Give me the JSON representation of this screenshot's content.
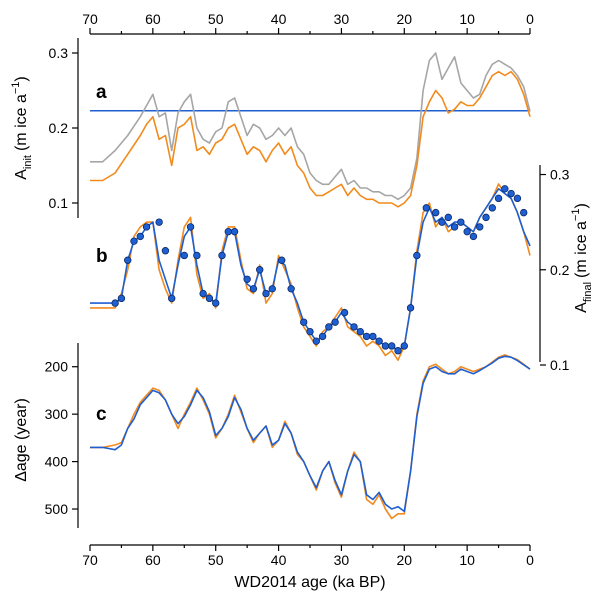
{
  "colors": {
    "gray": "#a6a6a6",
    "orange": "#f28a1c",
    "blue": "#1e5fd2",
    "marker": "#1f4fa8"
  },
  "chart_data": [
    {
      "id": "a",
      "type": "line",
      "panel_label": "a",
      "ylabel": "A",
      "ylabel_sub": "init",
      "ylabel_unit_pre": "(m ice a",
      "ylabel_unit_sup": "−1",
      "ylabel_unit_post": ")",
      "ylim": [
        0.08,
        0.32
      ],
      "yticks": [
        "0.1",
        "0.2",
        "0.3"
      ],
      "ytick_values": [
        0.1,
        0.2,
        0.3
      ],
      "hline": 0.223,
      "series": [
        {
          "color": "gray",
          "x": [
            70,
            68,
            66,
            64,
            62,
            61,
            60,
            59,
            58,
            57,
            56,
            55,
            54,
            53,
            52,
            51,
            50,
            49,
            48,
            47,
            46,
            45,
            44,
            43,
            42,
            41,
            40,
            39,
            38,
            37,
            36,
            35,
            34,
            33,
            32,
            31,
            30,
            29,
            28,
            27,
            26,
            25,
            24,
            23,
            22,
            21,
            20,
            19,
            18,
            17,
            16,
            15,
            14,
            13,
            12,
            11,
            10,
            9,
            8,
            7,
            6,
            5,
            4,
            3,
            2,
            1,
            0
          ],
          "y": [
            0.155,
            0.155,
            0.17,
            0.19,
            0.215,
            0.23,
            0.245,
            0.215,
            0.22,
            0.17,
            0.22,
            0.235,
            0.245,
            0.2,
            0.185,
            0.18,
            0.195,
            0.2,
            0.235,
            0.24,
            0.215,
            0.19,
            0.205,
            0.2,
            0.185,
            0.19,
            0.2,
            0.19,
            0.2,
            0.175,
            0.165,
            0.14,
            0.13,
            0.125,
            0.125,
            0.135,
            0.145,
            0.125,
            0.13,
            0.12,
            0.12,
            0.115,
            0.115,
            0.11,
            0.11,
            0.105,
            0.11,
            0.12,
            0.16,
            0.25,
            0.29,
            0.3,
            0.265,
            0.28,
            0.295,
            0.26,
            0.25,
            0.24,
            0.245,
            0.27,
            0.285,
            0.29,
            0.285,
            0.28,
            0.27,
            0.255,
            0.222
          ]
        },
        {
          "color": "orange",
          "x": [
            70,
            68,
            66,
            64,
            62,
            61,
            60,
            59,
            58,
            57,
            56,
            55,
            54,
            53,
            52,
            51,
            50,
            49,
            48,
            47,
            46,
            45,
            44,
            43,
            42,
            41,
            40,
            39,
            38,
            37,
            36,
            35,
            34,
            33,
            32,
            31,
            30,
            29,
            28,
            27,
            26,
            25,
            24,
            23,
            22,
            21,
            20,
            19,
            18,
            17,
            16,
            15,
            14,
            13,
            12,
            11,
            10,
            9,
            8,
            7,
            6,
            5,
            4,
            3,
            2,
            1,
            0
          ],
          "y": [
            0.13,
            0.13,
            0.14,
            0.165,
            0.19,
            0.205,
            0.215,
            0.185,
            0.19,
            0.15,
            0.2,
            0.205,
            0.215,
            0.17,
            0.175,
            0.165,
            0.18,
            0.185,
            0.2,
            0.205,
            0.185,
            0.165,
            0.175,
            0.17,
            0.155,
            0.17,
            0.18,
            0.165,
            0.175,
            0.15,
            0.14,
            0.12,
            0.11,
            0.11,
            0.115,
            0.12,
            0.125,
            0.11,
            0.12,
            0.11,
            0.105,
            0.105,
            0.1,
            0.1,
            0.1,
            0.095,
            0.1,
            0.11,
            0.15,
            0.215,
            0.235,
            0.25,
            0.24,
            0.22,
            0.225,
            0.235,
            0.23,
            0.23,
            0.24,
            0.255,
            0.27,
            0.275,
            0.27,
            0.275,
            0.265,
            0.245,
            0.215
          ]
        }
      ]
    },
    {
      "id": "b",
      "type": "line",
      "panel_label": "b",
      "ylabel": "A",
      "ylabel_sub": "final",
      "ylabel_unit_pre": "(m ice a",
      "ylabel_unit_sup": "−1",
      "ylabel_unit_post": ")",
      "ylim": [
        0.1,
        0.31
      ],
      "yticks": [
        "0.1",
        "0.2",
        "0.3"
      ],
      "ytick_values": [
        0.1,
        0.2,
        0.3
      ],
      "series": [
        {
          "color": "orange",
          "x": [
            70,
            68,
            66,
            65,
            64,
            63,
            62,
            61,
            60,
            59,
            58,
            57,
            56,
            55,
            54,
            53,
            52,
            51,
            50,
            49,
            48,
            47,
            46,
            45,
            44,
            43,
            42,
            41,
            40,
            39,
            38,
            37,
            36,
            35,
            34,
            33,
            32,
            31,
            30,
            29,
            28,
            27,
            26,
            25,
            24,
            23,
            22,
            21,
            20,
            19,
            18,
            17,
            16,
            15,
            14,
            13,
            12,
            11,
            10,
            9,
            8,
            7,
            6,
            5,
            4,
            3,
            2,
            1,
            0
          ],
          "y": [
            0.16,
            0.16,
            0.16,
            0.175,
            0.2,
            0.235,
            0.245,
            0.25,
            0.25,
            0.2,
            0.18,
            0.165,
            0.21,
            0.245,
            0.255,
            0.195,
            0.17,
            0.175,
            0.16,
            0.22,
            0.245,
            0.245,
            0.21,
            0.18,
            0.175,
            0.205,
            0.165,
            0.175,
            0.215,
            0.2,
            0.185,
            0.16,
            0.14,
            0.13,
            0.12,
            0.135,
            0.14,
            0.15,
            0.16,
            0.14,
            0.135,
            0.13,
            0.12,
            0.125,
            0.12,
            0.11,
            0.115,
            0.105,
            0.12,
            0.16,
            0.22,
            0.26,
            0.27,
            0.245,
            0.255,
            0.24,
            0.245,
            0.25,
            0.245,
            0.24,
            0.255,
            0.265,
            0.275,
            0.29,
            0.28,
            0.275,
            0.26,
            0.24,
            0.215
          ]
        },
        {
          "color": "blue",
          "x": [
            70,
            68,
            66,
            65,
            64,
            63,
            62,
            61,
            60,
            59,
            58,
            57,
            56,
            55,
            54,
            53,
            52,
            51,
            50,
            49,
            48,
            47,
            46,
            45,
            44,
            43,
            42,
            41,
            40,
            39,
            38,
            37,
            36,
            35,
            34,
            33,
            32,
            31,
            30,
            29,
            28,
            27,
            26,
            25,
            24,
            23,
            22,
            21,
            20,
            19,
            18,
            17,
            16,
            15,
            14,
            13,
            12,
            11,
            10,
            9,
            8,
            7,
            6,
            5,
            4,
            3,
            2,
            1,
            0
          ],
          "y": [
            0.165,
            0.165,
            0.165,
            0.17,
            0.21,
            0.23,
            0.235,
            0.245,
            0.25,
            0.21,
            0.19,
            0.17,
            0.205,
            0.235,
            0.245,
            0.205,
            0.175,
            0.17,
            0.165,
            0.215,
            0.24,
            0.24,
            0.205,
            0.185,
            0.18,
            0.2,
            0.175,
            0.18,
            0.21,
            0.205,
            0.18,
            0.165,
            0.145,
            0.135,
            0.125,
            0.13,
            0.14,
            0.145,
            0.155,
            0.145,
            0.14,
            0.135,
            0.13,
            0.13,
            0.125,
            0.12,
            0.12,
            0.115,
            0.12,
            0.16,
            0.215,
            0.25,
            0.265,
            0.25,
            0.255,
            0.245,
            0.25,
            0.25,
            0.245,
            0.24,
            0.255,
            0.265,
            0.275,
            0.285,
            0.28,
            0.275,
            0.26,
            0.24,
            0.225
          ]
        }
      ],
      "markers": {
        "x": [
          66,
          65,
          64,
          63,
          62,
          61,
          59,
          58,
          57,
          55,
          54,
          53,
          52,
          51,
          50,
          49,
          48,
          47,
          45,
          44,
          43,
          42,
          41,
          39.5,
          38,
          36,
          35,
          34,
          33,
          32,
          31,
          29.5,
          28,
          27,
          26,
          25,
          24,
          23,
          22,
          21,
          20,
          19,
          18,
          16.5,
          15,
          14,
          13,
          12,
          11,
          10,
          9,
          8,
          7,
          6,
          5,
          4,
          3,
          2,
          1
        ],
        "y": [
          0.165,
          0.17,
          0.21,
          0.23,
          0.235,
          0.245,
          0.25,
          0.22,
          0.17,
          0.215,
          0.245,
          0.215,
          0.175,
          0.17,
          0.165,
          0.215,
          0.24,
          0.24,
          0.19,
          0.18,
          0.2,
          0.175,
          0.18,
          0.21,
          0.18,
          0.145,
          0.135,
          0.125,
          0.13,
          0.14,
          0.145,
          0.155,
          0.14,
          0.135,
          0.13,
          0.13,
          0.125,
          0.12,
          0.12,
          0.115,
          0.12,
          0.16,
          0.215,
          0.265,
          0.26,
          0.25,
          0.255,
          0.245,
          0.25,
          0.24,
          0.235,
          0.245,
          0.255,
          0.265,
          0.275,
          0.285,
          0.28,
          0.275,
          0.26
        ]
      }
    },
    {
      "id": "c",
      "type": "line",
      "panel_label": "c",
      "ylabel": "Δage (year)",
      "ylim": [
        150,
        540
      ],
      "yticks": [
        "200",
        "300",
        "400",
        "500"
      ],
      "ytick_values": [
        200,
        300,
        400,
        500
      ],
      "inverted": true,
      "series": [
        {
          "color": "orange",
          "x": [
            70,
            68,
            66,
            65,
            64,
            63,
            62,
            61,
            60,
            59,
            58,
            57,
            56,
            55,
            54,
            53,
            52,
            51,
            50,
            49,
            48,
            47,
            46,
            45,
            44,
            43,
            42,
            41,
            40,
            39,
            38,
            37,
            36,
            35,
            34,
            33,
            32,
            31,
            30,
            29,
            28,
            27,
            26,
            25,
            24,
            23,
            22,
            21,
            20,
            19,
            18,
            17,
            16,
            15,
            14,
            13,
            12,
            11,
            10,
            9,
            8,
            7,
            6,
            5,
            4,
            3,
            2,
            1,
            0
          ],
          "y": [
            370,
            370,
            365,
            360,
            330,
            300,
            275,
            260,
            245,
            250,
            270,
            300,
            330,
            300,
            275,
            245,
            270,
            300,
            350,
            330,
            300,
            260,
            295,
            330,
            360,
            340,
            325,
            370,
            355,
            315,
            340,
            385,
            400,
            430,
            460,
            420,
            400,
            445,
            475,
            420,
            380,
            400,
            480,
            490,
            470,
            500,
            520,
            510,
            510,
            420,
            300,
            230,
            200,
            195,
            205,
            215,
            210,
            200,
            205,
            210,
            205,
            200,
            190,
            180,
            175,
            180,
            185,
            195,
            205
          ]
        },
        {
          "color": "blue",
          "x": [
            70,
            68,
            66,
            65,
            64,
            63,
            62,
            61,
            60,
            59,
            58,
            57,
            56,
            55,
            54,
            53,
            52,
            51,
            50,
            49,
            48,
            47,
            46,
            45,
            44,
            43,
            42,
            41,
            40,
            39,
            38,
            37,
            36,
            35,
            34,
            33,
            32,
            31,
            30,
            29,
            28,
            27,
            26,
            25,
            24,
            23,
            22,
            21,
            20,
            19,
            18,
            17,
            16,
            15,
            14,
            13,
            12,
            11,
            10,
            9,
            8,
            7,
            6,
            5,
            4,
            3,
            2,
            1,
            0
          ],
          "y": [
            370,
            370,
            375,
            365,
            330,
            310,
            280,
            265,
            250,
            255,
            270,
            300,
            320,
            305,
            280,
            250,
            265,
            295,
            345,
            330,
            305,
            265,
            290,
            330,
            355,
            340,
            325,
            365,
            355,
            320,
            340,
            380,
            400,
            430,
            455,
            420,
            400,
            440,
            470,
            420,
            385,
            400,
            470,
            480,
            465,
            490,
            500,
            495,
            505,
            420,
            305,
            235,
            205,
            200,
            210,
            215,
            215,
            205,
            210,
            215,
            208,
            200,
            192,
            182,
            178,
            180,
            187,
            196,
            205
          ]
        }
      ]
    }
  ],
  "top_axis": {
    "ticks": [
      "70",
      "60",
      "50",
      "40",
      "30",
      "20",
      "10",
      "0"
    ]
  },
  "bottom_axis": {
    "ticks": [
      "70",
      "60",
      "50",
      "40",
      "30",
      "20",
      "10",
      "0"
    ],
    "label": "WD2014 age (ka BP)"
  }
}
